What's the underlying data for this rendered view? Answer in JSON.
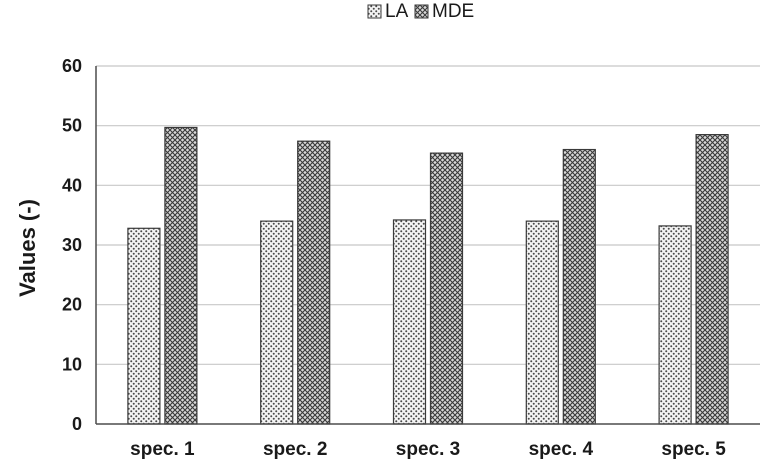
{
  "chart_data": {
    "type": "bar",
    "categories": [
      "spec. 1",
      "spec. 2",
      "spec. 3",
      "spec. 4",
      "spec. 5"
    ],
    "series": [
      {
        "name": "LA",
        "values": [
          32.8,
          34.0,
          34.2,
          34.0,
          33.2
        ],
        "pattern": "dots"
      },
      {
        "name": "MDE",
        "values": [
          49.7,
          47.4,
          45.4,
          46.0,
          48.5
        ],
        "pattern": "crosshatch"
      }
    ],
    "title": "",
    "xlabel": "",
    "ylabel": "Values (-)",
    "ylim": [
      0,
      60
    ],
    "yticks": [
      0,
      10,
      20,
      30,
      40,
      50,
      60
    ],
    "grid": true,
    "legend_position": "top-center",
    "colors": {
      "grid": "#c8c8c8",
      "bar_stroke": "#3a3a3a",
      "text": "#1a1a1a"
    }
  }
}
